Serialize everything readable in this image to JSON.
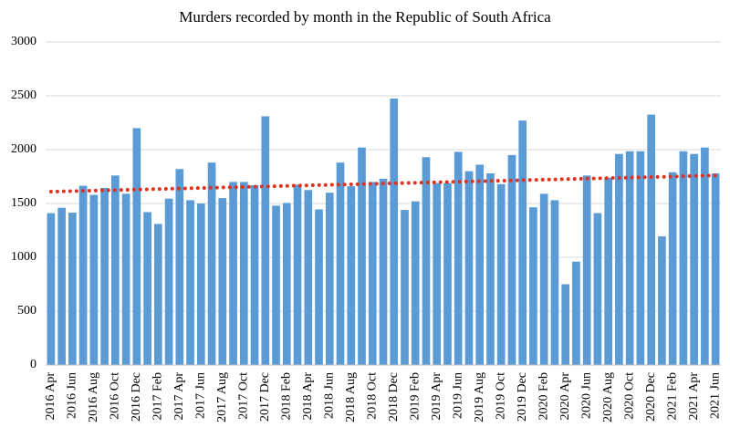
{
  "chart_data": {
    "type": "bar",
    "title": "Murders recorded by month in the Republic of South Africa",
    "categories": [
      "2016 Apr",
      null,
      "2016 Jun",
      null,
      "2016 Aug",
      null,
      "2016 Oct",
      null,
      "2016 Dec",
      null,
      "2017 Feb",
      null,
      "2017 Apr",
      null,
      "2017 Jun",
      null,
      "2017 Aug",
      null,
      "2017 Oct",
      null,
      "2017 Dec",
      null,
      "2018 Feb",
      null,
      "2018 Apr",
      null,
      "2018 Jun",
      null,
      "2018 Aug",
      null,
      "2018 Oct",
      null,
      "2018 Dec",
      null,
      "2019 Feb",
      null,
      "2019 Apr",
      null,
      "2019 Jun",
      null,
      "2019 Aug",
      null,
      "2019 Oct",
      null,
      "2019 Dec",
      null,
      "2020 Feb",
      null,
      "2020 Apr",
      null,
      "2020 Jun",
      null,
      "2020 Aug",
      null,
      "2020 Oct",
      null,
      "2020 Dec",
      null,
      "2021 Feb",
      null,
      "2021 Apr",
      null,
      "2021 Jun"
    ],
    "values": [
      1410,
      1460,
      1415,
      1665,
      1580,
      1645,
      1760,
      1590,
      2200,
      1420,
      1310,
      1545,
      1820,
      1530,
      1500,
      1880,
      1550,
      1700,
      1700,
      1670,
      2310,
      1480,
      1505,
      1675,
      1625,
      1445,
      1600,
      1880,
      1660,
      2020,
      1700,
      1730,
      2475,
      1440,
      1520,
      1930,
      1690,
      1690,
      1980,
      1800,
      1860,
      1780,
      1680,
      1950,
      2270,
      1465,
      1590,
      1530,
      750,
      960,
      1760,
      1410,
      1740,
      1960,
      1985,
      1985,
      2325,
      1195,
      1790,
      1985,
      1960,
      2020,
      1780
    ],
    "color": "#5b9bd5",
    "trend": {
      "start": 1610,
      "end": 1760,
      "color": "#e0301e"
    },
    "ylim": [
      0,
      3000
    ],
    "yticks": [
      0,
      500,
      1000,
      1500,
      2000,
      2500,
      3000
    ],
    "grid": true
  }
}
